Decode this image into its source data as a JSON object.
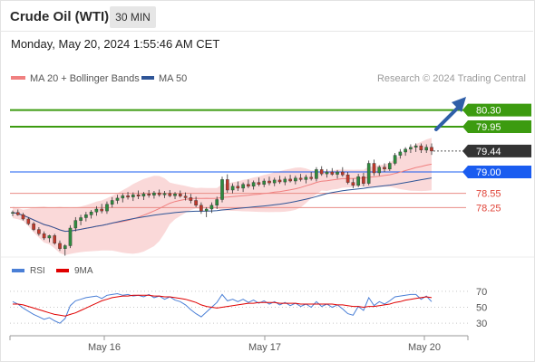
{
  "header": {
    "title": "Crude Oil (WTI)",
    "timeframe": "30 MIN",
    "datetime": "Monday, May 20, 2024 1:55:46 AM CET"
  },
  "chart_data": [
    {
      "type": "candlestick",
      "legend": [
        {
          "name": "MA 20 + Bollinger Bands",
          "color": "#f08080"
        },
        {
          "name": "MA 50",
          "color": "#2f5597"
        }
      ],
      "legend_placement": "top-left",
      "credit": "Research © 2024 Trading Central",
      "ylim": [
        77.25,
        80.75
      ],
      "x_ticks": [
        "May 16",
        "May 17",
        "May 20"
      ],
      "levels": [
        {
          "value": 80.3,
          "label": "80.30",
          "kind": "resistance",
          "color": "#3c9b10"
        },
        {
          "value": 79.95,
          "label": "79.95",
          "kind": "resistance",
          "color": "#3c9b10"
        },
        {
          "value": 79.44,
          "label": "79.44",
          "kind": "last",
          "color": "#333333"
        },
        {
          "value": 79.0,
          "label": "79.00",
          "kind": "pivot",
          "color": "#1a5cf0"
        },
        {
          "value": 78.55,
          "label": "78.55",
          "kind": "support",
          "color": "#e0453a"
        },
        {
          "value": 78.25,
          "label": "78.25",
          "kind": "support",
          "color": "#e0453a"
        }
      ],
      "up_color": "#2e8b3e",
      "down_color": "#c0392b",
      "bollinger_color": "#f8c9c9",
      "ma20_color": "#f08080",
      "ma50_color": "#2f5597",
      "candles": [
        [
          78.13,
          78.19,
          78.07,
          78.15
        ],
        [
          78.15,
          78.21,
          78.08,
          78.1
        ],
        [
          78.1,
          78.14,
          77.98,
          78.01
        ],
        [
          78.01,
          78.05,
          77.88,
          77.91
        ],
        [
          77.91,
          77.95,
          77.76,
          77.79
        ],
        [
          77.79,
          77.84,
          77.66,
          77.7
        ],
        [
          77.7,
          77.75,
          77.57,
          77.61
        ],
        [
          77.61,
          77.68,
          77.52,
          77.66
        ],
        [
          77.66,
          77.7,
          77.47,
          77.5
        ],
        [
          77.5,
          77.56,
          77.34,
          77.39
        ],
        [
          77.39,
          77.48,
          77.24,
          77.45
        ],
        [
          77.45,
          77.88,
          77.4,
          77.82
        ],
        [
          77.82,
          78.05,
          77.75,
          77.98
        ],
        [
          77.98,
          78.1,
          77.88,
          78.04
        ],
        [
          78.04,
          78.16,
          77.96,
          78.1
        ],
        [
          78.1,
          78.2,
          78.02,
          78.16
        ],
        [
          78.16,
          78.28,
          78.08,
          78.22
        ],
        [
          78.22,
          78.33,
          78.13,
          78.18
        ],
        [
          78.18,
          78.38,
          78.12,
          78.32
        ],
        [
          78.32,
          78.47,
          78.25,
          78.4
        ],
        [
          78.4,
          78.52,
          78.33,
          78.45
        ],
        [
          78.45,
          78.55,
          78.36,
          78.5
        ],
        [
          78.5,
          78.58,
          78.42,
          78.47
        ],
        [
          78.47,
          78.57,
          78.39,
          78.52
        ],
        [
          78.52,
          78.61,
          78.43,
          78.49
        ],
        [
          78.49,
          78.58,
          78.41,
          78.54
        ],
        [
          78.54,
          78.62,
          78.46,
          78.51
        ],
        [
          78.51,
          78.6,
          78.44,
          78.56
        ],
        [
          78.56,
          78.63,
          78.48,
          78.52
        ],
        [
          78.52,
          78.6,
          78.45,
          78.55
        ],
        [
          78.55,
          78.62,
          78.47,
          78.5
        ],
        [
          78.5,
          78.58,
          78.43,
          78.54
        ],
        [
          78.54,
          78.61,
          78.46,
          78.49
        ],
        [
          78.49,
          78.57,
          78.4,
          78.46
        ],
        [
          78.46,
          78.54,
          78.34,
          78.4
        ],
        [
          78.4,
          78.48,
          78.26,
          78.3
        ],
        [
          78.3,
          78.36,
          78.12,
          78.18
        ],
        [
          78.18,
          78.26,
          78.05,
          78.22
        ],
        [
          78.22,
          78.36,
          78.14,
          78.3
        ],
        [
          78.3,
          78.48,
          78.22,
          78.42
        ],
        [
          78.42,
          78.9,
          78.36,
          78.84
        ],
        [
          78.84,
          78.95,
          78.56,
          78.62
        ],
        [
          78.62,
          78.76,
          78.55,
          78.7
        ],
        [
          78.7,
          78.8,
          78.6,
          78.66
        ],
        [
          78.66,
          78.78,
          78.58,
          78.74
        ],
        [
          78.74,
          78.84,
          78.66,
          78.7
        ],
        [
          78.7,
          78.82,
          78.63,
          78.78
        ],
        [
          78.78,
          78.88,
          78.7,
          78.74
        ],
        [
          78.74,
          78.86,
          78.68,
          78.81
        ],
        [
          78.81,
          78.9,
          78.72,
          78.77
        ],
        [
          78.77,
          78.88,
          78.7,
          78.83
        ],
        [
          78.83,
          78.92,
          78.75,
          78.79
        ],
        [
          78.79,
          78.9,
          78.72,
          78.85
        ],
        [
          78.85,
          78.94,
          78.78,
          78.81
        ],
        [
          78.81,
          78.92,
          78.74,
          78.87
        ],
        [
          78.87,
          78.96,
          78.8,
          78.84
        ],
        [
          78.84,
          78.94,
          78.76,
          78.89
        ],
        [
          78.89,
          79.0,
          78.82,
          78.86
        ],
        [
          78.86,
          79.1,
          78.8,
          79.05
        ],
        [
          79.05,
          79.12,
          78.92,
          78.96
        ],
        [
          78.96,
          79.06,
          78.88,
          79.0
        ],
        [
          79.0,
          79.08,
          78.92,
          78.95
        ],
        [
          78.95,
          79.04,
          78.86,
          79.0
        ],
        [
          79.0,
          79.1,
          78.9,
          78.94
        ],
        [
          78.94,
          79.0,
          78.74,
          78.78
        ],
        [
          78.78,
          78.86,
          78.66,
          78.72
        ],
        [
          78.72,
          78.96,
          78.68,
          78.9
        ],
        [
          78.9,
          78.98,
          78.7,
          78.76
        ],
        [
          78.76,
          79.24,
          78.72,
          79.18
        ],
        [
          79.18,
          79.26,
          78.92,
          78.98
        ],
        [
          78.98,
          79.14,
          78.92,
          79.1
        ],
        [
          79.1,
          79.18,
          79.0,
          79.06
        ],
        [
          79.06,
          79.22,
          79.02,
          79.18
        ],
        [
          79.18,
          79.4,
          79.14,
          79.35
        ],
        [
          79.35,
          79.48,
          79.28,
          79.42
        ],
        [
          79.42,
          79.52,
          79.34,
          79.48
        ],
        [
          79.48,
          79.58,
          79.4,
          79.52
        ],
        [
          79.52,
          79.6,
          79.42,
          79.55
        ],
        [
          79.55,
          79.6,
          79.4,
          79.46
        ],
        [
          79.46,
          79.58,
          79.4,
          79.52
        ],
        [
          79.52,
          79.6,
          79.36,
          79.44
        ]
      ]
    },
    {
      "type": "line",
      "legend": [
        {
          "name": "RSI",
          "color": "#4a7fd6"
        },
        {
          "name": "9MA",
          "color": "#e00000"
        }
      ],
      "legend_placement": "top-left",
      "ylim": [
        20,
        80
      ],
      "y_ticks": [
        70,
        50,
        30
      ],
      "series": [
        {
          "name": "RSI",
          "values": [
            57,
            54,
            49,
            45,
            41,
            38,
            35,
            37,
            33,
            30,
            36,
            52,
            58,
            60,
            62,
            63,
            64,
            61,
            65,
            66,
            67,
            65,
            66,
            64,
            65,
            63,
            66,
            62,
            64,
            60,
            63,
            59,
            57,
            53,
            47,
            42,
            38,
            44,
            50,
            56,
            66,
            58,
            60,
            57,
            60,
            56,
            59,
            55,
            58,
            54,
            57,
            53,
            56,
            52,
            55,
            51,
            54,
            50,
            57,
            51,
            54,
            50,
            53,
            48,
            42,
            40,
            51,
            46,
            62,
            52,
            57,
            54,
            58,
            63,
            64,
            65,
            66,
            66,
            60,
            64,
            57
          ]
        },
        {
          "name": "9MA",
          "values": [
            54,
            54,
            53,
            51,
            49,
            47,
            45,
            43,
            41,
            40,
            39,
            41,
            43,
            46,
            49,
            52,
            55,
            58,
            60,
            62,
            63,
            64,
            64,
            65,
            65,
            65,
            65,
            64,
            64,
            63,
            63,
            62,
            61,
            60,
            58,
            56,
            53,
            51,
            50,
            49,
            50,
            51,
            52,
            53,
            54,
            55,
            55,
            56,
            56,
            56,
            56,
            55,
            55,
            55,
            55,
            54,
            54,
            54,
            54,
            54,
            54,
            54,
            53,
            53,
            52,
            51,
            51,
            50,
            51,
            51,
            52,
            53,
            54,
            56,
            57,
            59,
            60,
            61,
            62,
            63,
            62
          ]
        }
      ]
    }
  ]
}
